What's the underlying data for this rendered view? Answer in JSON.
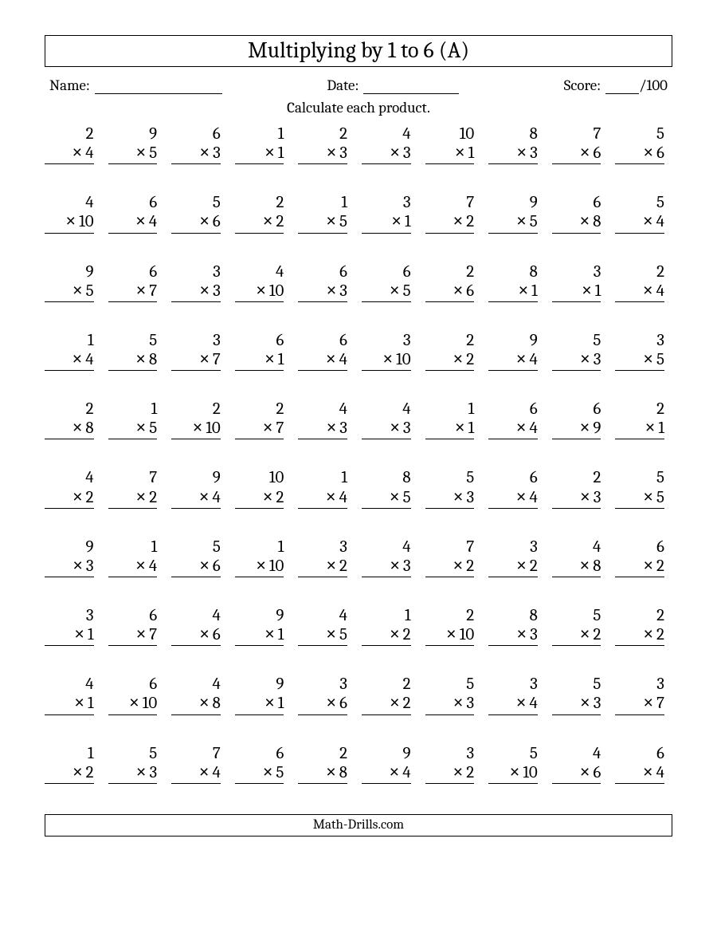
{
  "title": "Multiplying by 1 to 6 (A)",
  "labels": {
    "name": "Name:",
    "date": "Date:",
    "score": "Score:",
    "score_total": "/100"
  },
  "instruction": "Calculate each product.",
  "footer": "Math-Drills.com",
  "operator_symbol": "×",
  "grid": {
    "columns": 10,
    "rows": 10
  },
  "problems": [
    [
      [
        2,
        4
      ],
      [
        9,
        5
      ],
      [
        6,
        3
      ],
      [
        1,
        1
      ],
      [
        2,
        3
      ],
      [
        4,
        3
      ],
      [
        10,
        1
      ],
      [
        8,
        3
      ],
      [
        7,
        6
      ],
      [
        5,
        6
      ]
    ],
    [
      [
        4,
        10
      ],
      [
        6,
        4
      ],
      [
        5,
        6
      ],
      [
        2,
        2
      ],
      [
        1,
        5
      ],
      [
        3,
        1
      ],
      [
        7,
        2
      ],
      [
        9,
        5
      ],
      [
        6,
        8
      ],
      [
        5,
        4
      ]
    ],
    [
      [
        9,
        5
      ],
      [
        6,
        7
      ],
      [
        3,
        3
      ],
      [
        4,
        10
      ],
      [
        6,
        3
      ],
      [
        6,
        5
      ],
      [
        2,
        6
      ],
      [
        8,
        1
      ],
      [
        3,
        1
      ],
      [
        2,
        4
      ]
    ],
    [
      [
        1,
        4
      ],
      [
        5,
        8
      ],
      [
        3,
        7
      ],
      [
        6,
        1
      ],
      [
        6,
        4
      ],
      [
        3,
        10
      ],
      [
        2,
        2
      ],
      [
        9,
        4
      ],
      [
        5,
        3
      ],
      [
        3,
        5
      ]
    ],
    [
      [
        2,
        8
      ],
      [
        1,
        5
      ],
      [
        2,
        10
      ],
      [
        2,
        7
      ],
      [
        4,
        3
      ],
      [
        4,
        3
      ],
      [
        1,
        1
      ],
      [
        6,
        4
      ],
      [
        6,
        9
      ],
      [
        2,
        1
      ]
    ],
    [
      [
        4,
        2
      ],
      [
        7,
        2
      ],
      [
        9,
        4
      ],
      [
        10,
        2
      ],
      [
        1,
        4
      ],
      [
        8,
        5
      ],
      [
        5,
        3
      ],
      [
        6,
        4
      ],
      [
        2,
        3
      ],
      [
        5,
        5
      ]
    ],
    [
      [
        9,
        3
      ],
      [
        1,
        4
      ],
      [
        5,
        6
      ],
      [
        1,
        10
      ],
      [
        3,
        2
      ],
      [
        4,
        3
      ],
      [
        7,
        2
      ],
      [
        3,
        2
      ],
      [
        4,
        8
      ],
      [
        6,
        2
      ]
    ],
    [
      [
        3,
        1
      ],
      [
        6,
        7
      ],
      [
        4,
        6
      ],
      [
        9,
        1
      ],
      [
        4,
        5
      ],
      [
        1,
        2
      ],
      [
        2,
        10
      ],
      [
        8,
        3
      ],
      [
        5,
        2
      ],
      [
        2,
        2
      ]
    ],
    [
      [
        4,
        1
      ],
      [
        6,
        10
      ],
      [
        4,
        8
      ],
      [
        9,
        1
      ],
      [
        3,
        6
      ],
      [
        2,
        2
      ],
      [
        5,
        3
      ],
      [
        3,
        4
      ],
      [
        5,
        3
      ],
      [
        3,
        7
      ]
    ],
    [
      [
        1,
        2
      ],
      [
        5,
        3
      ],
      [
        7,
        4
      ],
      [
        6,
        5
      ],
      [
        2,
        8
      ],
      [
        9,
        4
      ],
      [
        3,
        2
      ],
      [
        5,
        10
      ],
      [
        4,
        6
      ],
      [
        6,
        4
      ]
    ]
  ],
  "style": {
    "font_family": "Cambria, Georgia, serif",
    "title_fontsize": 28,
    "body_fontsize": 19,
    "problem_fontsize": 21,
    "text_color": "#000000",
    "background_color": "#ffffff",
    "border_color": "#000000"
  }
}
